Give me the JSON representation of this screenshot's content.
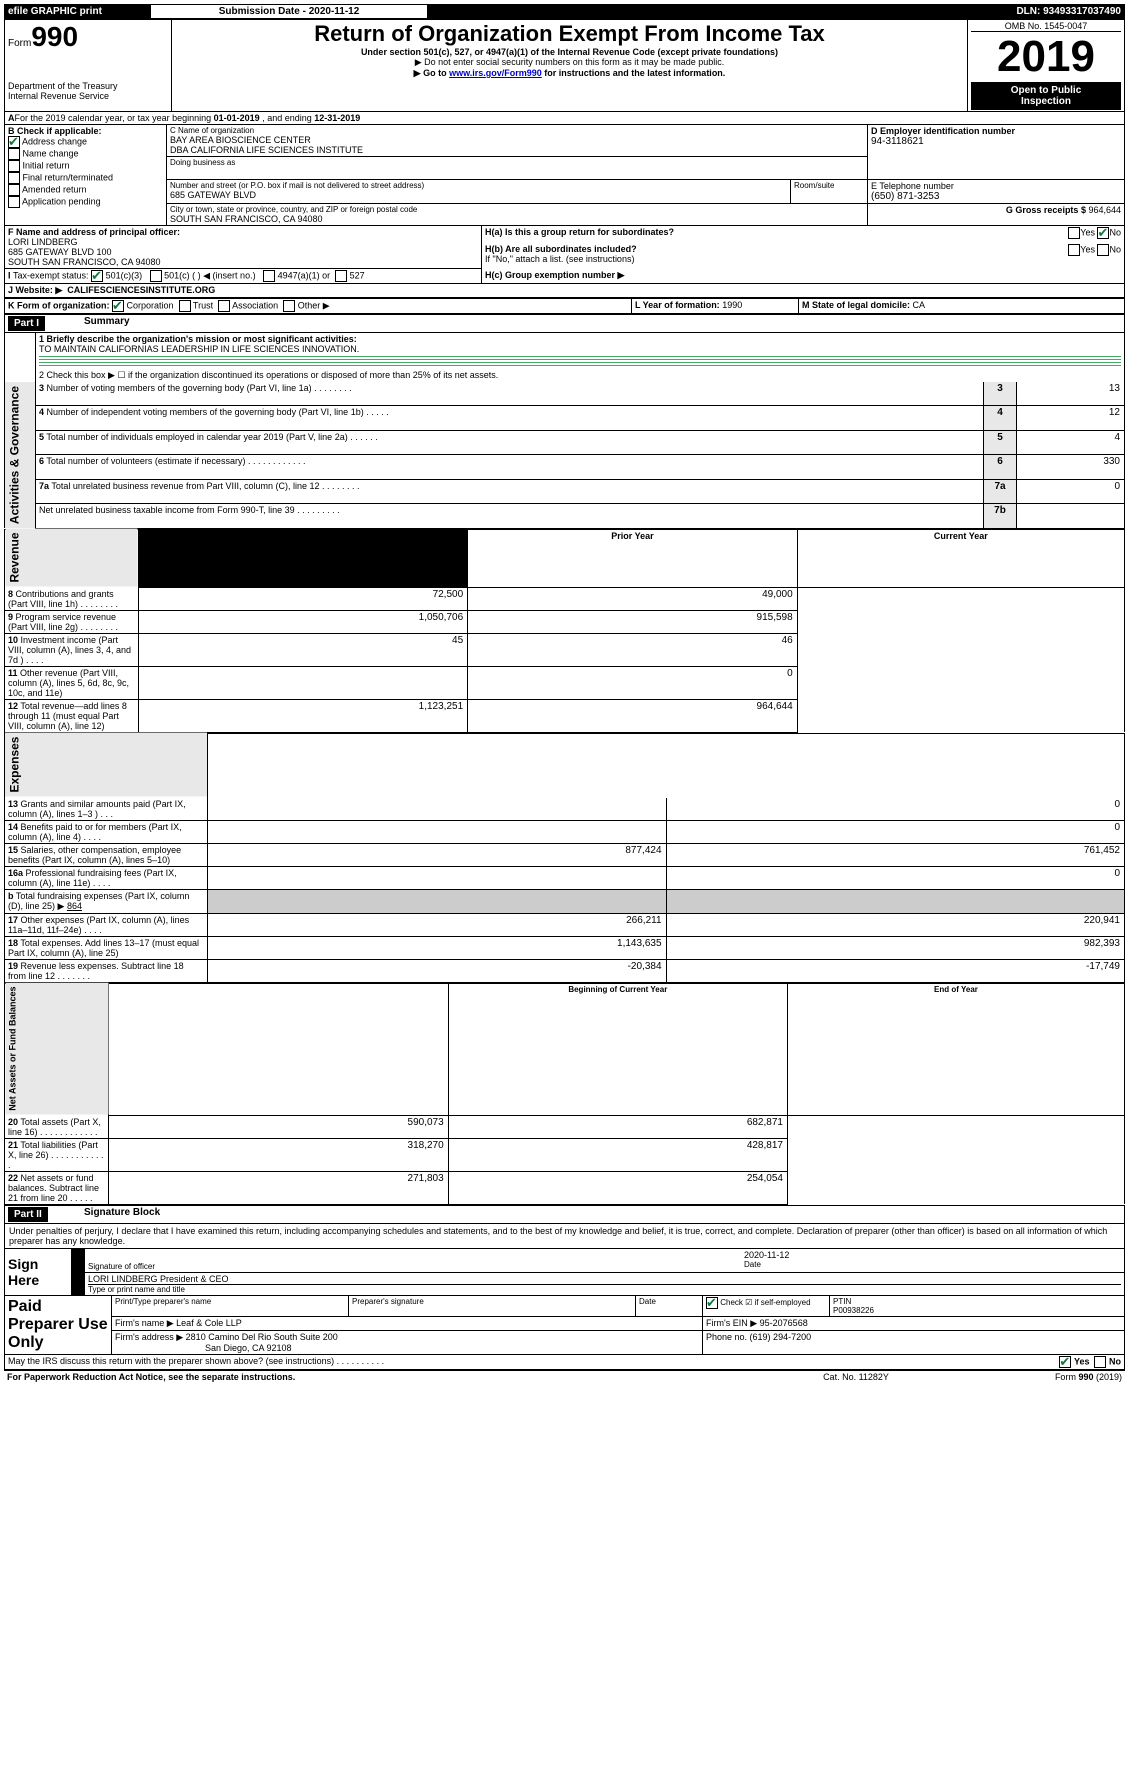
{
  "topbar": {
    "efile": "efile GRAPHIC print",
    "subdate_label": "Submission Date - ",
    "subdate": "2020-11-12",
    "dln_label": "DLN: ",
    "dln": "93493317037490"
  },
  "header": {
    "form_word": "Form",
    "form_no": "990",
    "dept1": "Department of the Treasury",
    "dept2": "Internal Revenue Service",
    "title": "Return of Organization Exempt From Income Tax",
    "sub1": "Under section 501(c), 527, or 4947(a)(1) of the Internal Revenue Code (except private foundations)",
    "sub2": "▶ Do not enter social security numbers on this form as it may be made public.",
    "sub3a": "▶ Go to ",
    "sub3b": "www.irs.gov/Form990",
    "sub3c": " for instructions and the latest information.",
    "omb": "OMB No. 1545-0047",
    "year": "2019",
    "open1": "Open to Public",
    "open2": "Inspection"
  },
  "periodA": {
    "prefix": "For the 2019 calendar year, or tax year beginning ",
    "begin": "01-01-2019",
    "mid": " , and ending ",
    "end": "12-31-2019"
  },
  "boxB": {
    "label": "B Check if applicable:",
    "addr": "Address change",
    "name": "Name change",
    "init": "Initial return",
    "final": "Final return/terminated",
    "amend": "Amended return",
    "app": "Application pending"
  },
  "boxC": {
    "label": "C Name of organization",
    "name1": "BAY AREA BIOSCIENCE CENTER",
    "name2": "DBA CALIFORNIA LIFE SCIENCES INSTITUTE",
    "dba_label": "Doing business as",
    "street_label": "Number and street (or P.O. box if mail is not delivered to street address)",
    "room_label": "Room/suite",
    "street": "685 GATEWAY BLVD",
    "city_label": "City or town, state or province, country, and ZIP or foreign postal code",
    "city": "SOUTH SAN FRANCISCO, CA  94080"
  },
  "boxD": {
    "label": "D Employer identification number",
    "val": "94-3118621"
  },
  "boxE": {
    "label": "E Telephone number",
    "val": "(650) 871-3253"
  },
  "boxG": {
    "label": "G Gross receipts $ ",
    "val": "964,644"
  },
  "boxF": {
    "label": "F Name and address of principal officer:",
    "l1": "LORI LINDBERG",
    "l2": "685 GATEWAY BLVD 100",
    "l3": "SOUTH SAN FRANCISCO, CA  94080"
  },
  "boxH": {
    "a": "H(a)  Is this a group return for subordinates?",
    "b": "H(b)  Are all subordinates included?",
    "bnote": "If \"No,\" attach a list. (see instructions)",
    "c": "H(c)  Group exemption number ▶",
    "yes": "Yes",
    "no": "No"
  },
  "boxI": {
    "label": "Tax-exempt status:",
    "c3": "501(c)(3)",
    "c": "501(c) (  ) ◀ (insert no.)",
    "a1": "4947(a)(1) or",
    "s527": "527"
  },
  "boxJ": {
    "label": "Website: ▶",
    "val": "CALIFESCIENCESINSTITUTE.ORG"
  },
  "boxK": {
    "label": "K Form of organization:",
    "corp": "Corporation",
    "trust": "Trust",
    "assoc": "Association",
    "other": "Other ▶"
  },
  "boxL": {
    "label": "L Year of formation: ",
    "val": "1990"
  },
  "boxM": {
    "label": "M State of legal domicile: ",
    "val": "CA"
  },
  "part1": {
    "hdr": "Part I",
    "title": "Summary",
    "vert1": "Activities & Governance",
    "vert2": "Revenue",
    "vert3": "Expenses",
    "vert4": "Net Assets or Fund Balances",
    "l1a": "1  Briefly describe the organization's mission or most significant activities:",
    "l1b": "TO MAINTAIN CALIFORNIAS LEADERSHIP IN LIFE SCIENCES INNOVATION.",
    "l2": "2  Check this box ▶ ☐  if the organization discontinued its operations or disposed of more than 25% of its net assets.",
    "rows_gov": [
      {
        "n": "3",
        "t": "Number of voting members of the governing body (Part VI, line 1a)  .   .   .   .   .   .   .   .",
        "box": "3",
        "v": "13"
      },
      {
        "n": "4",
        "t": "Number of independent voting members of the governing body (Part VI, line 1b)   .   .   .   .   .",
        "box": "4",
        "v": "12"
      },
      {
        "n": "5",
        "t": "Total number of individuals employed in calendar year 2019 (Part V, line 2a)   .   .   .   .   .   .",
        "box": "5",
        "v": "4"
      },
      {
        "n": "6",
        "t": "Total number of volunteers (estimate if necessary)   .   .   .   .   .   .   .   .   .   .   .   .",
        "box": "6",
        "v": "330"
      },
      {
        "n": "7a",
        "t": "Total unrelated business revenue from Part VIII, column (C), line 12   .   .   .   .   .   .   .   .",
        "box": "7a",
        "v": "0"
      },
      {
        "n": "",
        "t": "Net unrelated business taxable income from Form 990-T, line 39   .   .   .   .   .   .   .   .   .",
        "box": "7b",
        "v": ""
      }
    ],
    "col_prior": "Prior Year",
    "col_curr": "Current Year",
    "rows_rev": [
      {
        "n": "8",
        "t": "Contributions and grants (Part VIII, line 1h)   .   .   .   .   .   .   .   .",
        "p": "72,500",
        "c": "49,000"
      },
      {
        "n": "9",
        "t": "Program service revenue (Part VIII, line 2g)   .   .   .   .   .   .   .   .",
        "p": "1,050,706",
        "c": "915,598"
      },
      {
        "n": "10",
        "t": "Investment income (Part VIII, column (A), lines 3, 4, and 7d )   .   .   .   .",
        "p": "45",
        "c": "46"
      },
      {
        "n": "11",
        "t": "Other revenue (Part VIII, column (A), lines 5, 6d, 8c, 9c, 10c, and 11e)",
        "p": "",
        "c": "0"
      },
      {
        "n": "12",
        "t": "Total revenue—add lines 8 through 11 (must equal Part VIII, column (A), line 12)",
        "p": "1,123,251",
        "c": "964,644"
      }
    ],
    "rows_exp": [
      {
        "n": "13",
        "t": "Grants and similar amounts paid (Part IX, column (A), lines 1–3 )   .   .   .",
        "p": "",
        "c": "0"
      },
      {
        "n": "14",
        "t": "Benefits paid to or for members (Part IX, column (A), line 4)   .   .   .   .",
        "p": "",
        "c": "0"
      },
      {
        "n": "15",
        "t": "Salaries, other compensation, employee benefits (Part IX, column (A), lines 5–10)",
        "p": "877,424",
        "c": "761,452"
      },
      {
        "n": "16a",
        "t": "Professional fundraising fees (Part IX, column (A), line 11e)   .   .   .   .",
        "p": "",
        "c": "0"
      },
      {
        "n": "b",
        "t": "Total fundraising expenses (Part IX, column (D), line 25) ▶",
        "extra": "864",
        "p": null,
        "c": null
      },
      {
        "n": "17",
        "t": "Other expenses (Part IX, column (A), lines 11a–11d, 11f–24e)   .   .   .   .",
        "p": "266,211",
        "c": "220,941"
      },
      {
        "n": "18",
        "t": "Total expenses. Add lines 13–17 (must equal Part IX, column (A), line 25)",
        "p": "1,143,635",
        "c": "982,393"
      },
      {
        "n": "19",
        "t": "Revenue less expenses. Subtract line 18 from line 12   .   .   .   .   .   .   .",
        "p": "-20,384",
        "c": "-17,749"
      }
    ],
    "col_begin": "Beginning of Current Year",
    "col_end": "End of Year",
    "rows_net": [
      {
        "n": "20",
        "t": "Total assets (Part X, line 16)   .   .   .   .   .   .   .   .   .   .   .   .",
        "p": "590,073",
        "c": "682,871"
      },
      {
        "n": "21",
        "t": "Total liabilities (Part X, line 26)   .   .   .   .   .   .   .   .   .   .   .   .",
        "p": "318,270",
        "c": "428,817"
      },
      {
        "n": "22",
        "t": "Net assets or fund balances. Subtract line 21 from line 20   .   .   .   .   .",
        "p": "271,803",
        "c": "254,054"
      }
    ]
  },
  "part2": {
    "hdr": "Part II",
    "title": "Signature Block",
    "perjury": "Under penalties of perjury, I declare that I have examined this return, including accompanying schedules and statements, and to the best of my knowledge and belief, it is true, correct, and complete. Declaration of preparer (other than officer) is based on all information of which preparer has any knowledge.",
    "sign": "Sign Here",
    "sig_officer": "Signature of officer",
    "sig_date": "Date",
    "date_val": "2020-11-12",
    "name_title": "LORI LINDBERG  President & CEO",
    "type_name": "Type or print name and title",
    "paid": "Paid Preparer Use Only",
    "prep_name_lbl": "Print/Type preparer's name",
    "prep_sig_lbl": "Preparer's signature",
    "date_lbl": "Date",
    "check_lbl": "Check ☑ if self-employed",
    "ptin_lbl": "PTIN",
    "ptin": "P00938226",
    "firm_name_lbl": "Firm's name    ▶",
    "firm_name": "Leaf & Cole LLP",
    "firm_ein_lbl": "Firm's EIN ▶",
    "firm_ein": "95-2076568",
    "firm_addr_lbl": "Firm's address ▶",
    "firm_addr1": "2810 Camino Del Rio South Suite 200",
    "firm_addr2": "San Diego, CA  92108",
    "phone_lbl": "Phone no. ",
    "phone": "(619) 294-7200",
    "discuss": "May the IRS discuss this return with the preparer shown above? (see instructions)   .   .   .   .   .   .   .   .   .   .",
    "yes": "Yes",
    "no": "No"
  },
  "footer": {
    "pra": "For Paperwork Reduction Act Notice, see the separate instructions.",
    "cat": "Cat. No. 11282Y",
    "form": "Form 990 (2019)"
  }
}
